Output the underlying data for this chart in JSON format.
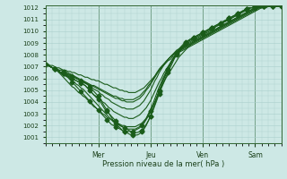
{
  "title": "",
  "xlabel": "Pression niveau de la mer( hPa )",
  "ylabel": "",
  "bg_color": "#cde8e5",
  "plot_bg_color": "#cde8e5",
  "line_color": "#1a5c1a",
  "grid_color": "#aacfcc",
  "axis_color": "#336633",
  "text_color": "#1a401a",
  "ylim": [
    1001,
    1012
  ],
  "yticks": [
    1001,
    1002,
    1003,
    1004,
    1005,
    1006,
    1007,
    1008,
    1009,
    1010,
    1011,
    1012
  ],
  "day_labels": [
    "Mer",
    "Jeu",
    "Ven",
    "Sam"
  ],
  "day_positions": [
    24,
    48,
    72,
    96
  ],
  "xlim": [
    0,
    108
  ],
  "num_x_points": 109,
  "ensemble_lines": [
    [
      1007.2,
      1007.1,
      1007.0,
      1006.9,
      1006.8,
      1006.8,
      1006.7,
      1006.7,
      1006.6,
      1006.5,
      1006.4,
      1006.3,
      1006.2,
      1006.1,
      1006.0,
      1005.9,
      1005.8,
      1005.7,
      1005.6,
      1005.5,
      1005.3,
      1005.1,
      1004.9,
      1004.7,
      1004.5,
      1004.2,
      1003.9,
      1003.6,
      1003.3,
      1003.0,
      1002.7,
      1002.4,
      1002.2,
      1002.0,
      1001.8,
      1001.6,
      1001.5,
      1001.4,
      1001.3,
      1001.2,
      1001.2,
      1001.2,
      1001.2,
      1001.3,
      1001.5,
      1001.7,
      1002.0,
      1002.4,
      1002.8,
      1003.3,
      1003.8,
      1004.4,
      1004.9,
      1005.4,
      1005.9,
      1006.3,
      1006.7,
      1007.1,
      1007.5,
      1007.8,
      1008.1,
      1008.4,
      1008.6,
      1008.8,
      1009.0,
      1009.1,
      1009.3,
      1009.4,
      1009.5,
      1009.6,
      1009.7,
      1009.8,
      1009.9,
      1010.0,
      1010.1,
      1010.2,
      1010.3,
      1010.4,
      1010.5,
      1010.6,
      1010.7,
      1010.8,
      1010.9,
      1011.0,
      1011.1,
      1011.2,
      1011.3,
      1011.4,
      1011.5,
      1011.6,
      1011.7,
      1011.8,
      1011.9,
      1012.0,
      1012.0,
      1012.0,
      1012.1,
      1012.1,
      1012.1,
      1012.1,
      1012.1,
      1012.1,
      1012.1,
      1012.1,
      1012.1,
      1012.1,
      1012.1,
      1012.1,
      1012.1
    ],
    [
      1007.2,
      1007.1,
      1007.0,
      1006.9,
      1006.8,
      1006.7,
      1006.6,
      1006.5,
      1006.4,
      1006.3,
      1006.2,
      1006.1,
      1006.0,
      1005.9,
      1005.8,
      1005.7,
      1005.6,
      1005.5,
      1005.4,
      1005.2,
      1005.0,
      1004.8,
      1004.6,
      1004.4,
      1004.2,
      1004.0,
      1003.7,
      1003.4,
      1003.2,
      1003.0,
      1002.8,
      1002.6,
      1002.4,
      1002.2,
      1002.0,
      1001.9,
      1001.8,
      1001.7,
      1001.6,
      1001.5,
      1001.4,
      1001.4,
      1001.4,
      1001.5,
      1001.6,
      1001.8,
      1002.1,
      1002.4,
      1002.8,
      1003.2,
      1003.7,
      1004.2,
      1004.7,
      1005.2,
      1005.7,
      1006.1,
      1006.5,
      1006.9,
      1007.3,
      1007.7,
      1008.0,
      1008.3,
      1008.5,
      1008.7,
      1008.9,
      1009.1,
      1009.2,
      1009.3,
      1009.4,
      1009.5,
      1009.6,
      1009.7,
      1009.8,
      1009.9,
      1010.0,
      1010.1,
      1010.2,
      1010.3,
      1010.4,
      1010.5,
      1010.6,
      1010.7,
      1010.8,
      1010.9,
      1011.0,
      1011.1,
      1011.2,
      1011.3,
      1011.4,
      1011.5,
      1011.6,
      1011.7,
      1011.8,
      1011.9,
      1012.0,
      1012.0,
      1012.0,
      1012.1,
      1012.1,
      1012.1,
      1012.1,
      1012.1,
      1012.1,
      1012.1,
      1012.1,
      1012.1,
      1012.1,
      1012.1,
      1012.1
    ],
    [
      1007.2,
      1007.1,
      1007.0,
      1006.9,
      1006.8,
      1006.7,
      1006.6,
      1006.5,
      1006.4,
      1006.3,
      1006.1,
      1005.9,
      1005.7,
      1005.5,
      1005.3,
      1005.1,
      1004.9,
      1004.7,
      1004.5,
      1004.3,
      1004.1,
      1003.9,
      1003.7,
      1003.5,
      1003.3,
      1003.1,
      1002.9,
      1002.7,
      1002.5,
      1002.3,
      1002.1,
      1002.0,
      1001.9,
      1001.8,
      1001.7,
      1001.6,
      1001.5,
      1001.5,
      1001.5,
      1001.5,
      1001.5,
      1001.6,
      1001.7,
      1001.8,
      1002.0,
      1002.2,
      1002.5,
      1002.8,
      1003.2,
      1003.6,
      1004.0,
      1004.5,
      1005.0,
      1005.5,
      1006.0,
      1006.4,
      1006.8,
      1007.2,
      1007.6,
      1007.9,
      1008.2,
      1008.5,
      1008.7,
      1008.9,
      1009.1,
      1009.2,
      1009.3,
      1009.4,
      1009.5,
      1009.6,
      1009.7,
      1009.8,
      1009.9,
      1010.0,
      1010.1,
      1010.2,
      1010.3,
      1010.4,
      1010.5,
      1010.6,
      1010.7,
      1010.8,
      1010.9,
      1011.0,
      1011.1,
      1011.2,
      1011.3,
      1011.4,
      1011.5,
      1011.6,
      1011.7,
      1011.8,
      1011.9,
      1012.0,
      1012.0,
      1012.0,
      1012.1,
      1012.1,
      1012.1,
      1012.1,
      1012.1,
      1012.1,
      1012.1,
      1012.1,
      1012.1,
      1012.1,
      1012.1,
      1012.1,
      1012.1
    ],
    [
      1007.2,
      1007.1,
      1007.0,
      1006.9,
      1006.8,
      1006.7,
      1006.5,
      1006.4,
      1006.3,
      1006.2,
      1006.1,
      1006.0,
      1005.8,
      1005.7,
      1005.5,
      1005.4,
      1005.2,
      1005.1,
      1004.9,
      1004.7,
      1004.5,
      1004.3,
      1004.1,
      1003.9,
      1003.7,
      1003.5,
      1003.3,
      1003.1,
      1002.9,
      1002.7,
      1002.5,
      1002.3,
      1002.2,
      1002.1,
      1002.0,
      1001.9,
      1001.8,
      1001.7,
      1001.7,
      1001.7,
      1001.7,
      1001.7,
      1001.8,
      1001.9,
      1002.1,
      1002.3,
      1002.6,
      1003.0,
      1003.4,
      1003.8,
      1004.3,
      1004.8,
      1005.3,
      1005.7,
      1006.1,
      1006.5,
      1006.9,
      1007.2,
      1007.5,
      1007.8,
      1008.1,
      1008.3,
      1008.5,
      1008.7,
      1008.9,
      1009.0,
      1009.1,
      1009.2,
      1009.3,
      1009.4,
      1009.5,
      1009.6,
      1009.7,
      1009.8,
      1009.9,
      1010.0,
      1010.1,
      1010.2,
      1010.4,
      1010.5,
      1010.6,
      1010.7,
      1010.8,
      1010.9,
      1011.0,
      1011.1,
      1011.2,
      1011.3,
      1011.4,
      1011.5,
      1011.6,
      1011.7,
      1011.8,
      1011.9,
      1012.0,
      1012.0,
      1012.0,
      1012.1,
      1012.1,
      1012.1,
      1012.1,
      1012.1,
      1012.1,
      1012.1,
      1012.1,
      1012.1,
      1012.1,
      1012.1,
      1012.1
    ],
    [
      1007.2,
      1007.1,
      1007.0,
      1006.9,
      1006.8,
      1006.7,
      1006.5,
      1006.3,
      1006.1,
      1005.9,
      1005.7,
      1005.5,
      1005.3,
      1005.2,
      1005.0,
      1004.8,
      1004.7,
      1004.5,
      1004.4,
      1004.2,
      1004.0,
      1003.8,
      1003.6,
      1003.5,
      1003.3,
      1003.2,
      1003.0,
      1002.9,
      1002.7,
      1002.6,
      1002.5,
      1002.4,
      1002.3,
      1002.2,
      1002.1,
      1002.0,
      1002.0,
      1001.9,
      1001.9,
      1001.9,
      1001.9,
      1001.9,
      1002.0,
      1002.1,
      1002.2,
      1002.4,
      1002.6,
      1002.9,
      1003.2,
      1003.6,
      1004.0,
      1004.4,
      1004.8,
      1005.2,
      1005.6,
      1006.0,
      1006.3,
      1006.6,
      1006.9,
      1007.2,
      1007.5,
      1007.8,
      1008.0,
      1008.2,
      1008.4,
      1008.6,
      1008.8,
      1009.0,
      1009.1,
      1009.2,
      1009.3,
      1009.4,
      1009.5,
      1009.6,
      1009.7,
      1009.8,
      1009.9,
      1010.0,
      1010.1,
      1010.3,
      1010.4,
      1010.5,
      1010.6,
      1010.7,
      1010.8,
      1010.9,
      1011.0,
      1011.1,
      1011.2,
      1011.3,
      1011.4,
      1011.5,
      1011.6,
      1011.7,
      1011.8,
      1011.9,
      1012.0,
      1012.0,
      1012.1,
      1012.1,
      1012.1,
      1012.1,
      1012.1,
      1012.1,
      1012.1,
      1012.1,
      1012.1,
      1012.1,
      1012.1
    ],
    [
      1007.2,
      1007.1,
      1007.0,
      1006.9,
      1006.8,
      1006.7,
      1006.6,
      1006.5,
      1006.4,
      1006.3,
      1006.2,
      1006.1,
      1006.0,
      1005.9,
      1005.8,
      1005.7,
      1005.6,
      1005.5,
      1005.4,
      1005.2,
      1005.0,
      1004.8,
      1004.6,
      1004.5,
      1004.3,
      1004.2,
      1004.0,
      1003.9,
      1003.7,
      1003.5,
      1003.4,
      1003.2,
      1003.1,
      1003.0,
      1002.9,
      1002.8,
      1002.7,
      1002.7,
      1002.6,
      1002.6,
      1002.6,
      1002.7,
      1002.8,
      1002.9,
      1003.1,
      1003.3,
      1003.5,
      1003.8,
      1004.1,
      1004.5,
      1004.9,
      1005.3,
      1005.7,
      1006.0,
      1006.4,
      1006.7,
      1007.0,
      1007.3,
      1007.6,
      1007.8,
      1008.0,
      1008.2,
      1008.4,
      1008.6,
      1008.7,
      1008.8,
      1008.9,
      1009.0,
      1009.1,
      1009.2,
      1009.3,
      1009.4,
      1009.5,
      1009.6,
      1009.7,
      1009.8,
      1009.9,
      1010.0,
      1010.1,
      1010.2,
      1010.3,
      1010.4,
      1010.5,
      1010.6,
      1010.7,
      1010.8,
      1010.9,
      1011.0,
      1011.1,
      1011.2,
      1011.3,
      1011.4,
      1011.5,
      1011.6,
      1011.7,
      1011.8,
      1011.9,
      1012.0,
      1012.0,
      1012.0,
      1012.1,
      1012.1,
      1012.1,
      1012.1,
      1012.1,
      1012.1,
      1012.1,
      1012.1,
      1012.1
    ],
    [
      1007.2,
      1007.1,
      1007.0,
      1006.9,
      1006.8,
      1006.7,
      1006.6,
      1006.5,
      1006.5,
      1006.4,
      1006.3,
      1006.3,
      1006.2,
      1006.1,
      1006.0,
      1005.9,
      1005.8,
      1005.7,
      1005.6,
      1005.5,
      1005.4,
      1005.2,
      1005.1,
      1005.0,
      1004.9,
      1004.7,
      1004.6,
      1004.4,
      1004.3,
      1004.2,
      1004.0,
      1003.9,
      1003.8,
      1003.7,
      1003.6,
      1003.5,
      1003.5,
      1003.4,
      1003.4,
      1003.4,
      1003.4,
      1003.5,
      1003.6,
      1003.7,
      1003.9,
      1004.1,
      1004.4,
      1004.7,
      1005.0,
      1005.4,
      1005.8,
      1006.1,
      1006.5,
      1006.8,
      1007.1,
      1007.4,
      1007.6,
      1007.8,
      1008.0,
      1008.2,
      1008.4,
      1008.5,
      1008.6,
      1008.7,
      1008.8,
      1008.9,
      1009.0,
      1009.1,
      1009.2,
      1009.3,
      1009.4,
      1009.5,
      1009.6,
      1009.7,
      1009.8,
      1009.9,
      1010.0,
      1010.1,
      1010.2,
      1010.3,
      1010.4,
      1010.5,
      1010.6,
      1010.7,
      1010.8,
      1010.9,
      1011.0,
      1011.1,
      1011.2,
      1011.3,
      1011.4,
      1011.5,
      1011.6,
      1011.7,
      1011.8,
      1011.9,
      1012.0,
      1012.0,
      1012.0,
      1012.1,
      1012.1,
      1012.1,
      1012.1,
      1012.1,
      1012.1,
      1012.1,
      1012.1,
      1012.1,
      1012.1
    ],
    [
      1007.2,
      1007.1,
      1007.0,
      1006.9,
      1006.8,
      1006.8,
      1006.7,
      1006.7,
      1006.6,
      1006.5,
      1006.5,
      1006.4,
      1006.3,
      1006.2,
      1006.1,
      1006.0,
      1005.9,
      1005.8,
      1005.7,
      1005.6,
      1005.5,
      1005.4,
      1005.3,
      1005.2,
      1005.1,
      1005.0,
      1004.9,
      1004.8,
      1004.7,
      1004.6,
      1004.5,
      1004.4,
      1004.3,
      1004.3,
      1004.2,
      1004.1,
      1004.1,
      1004.0,
      1004.0,
      1004.0,
      1004.0,
      1004.1,
      1004.2,
      1004.3,
      1004.5,
      1004.7,
      1005.0,
      1005.2,
      1005.5,
      1005.8,
      1006.1,
      1006.4,
      1006.7,
      1007.0,
      1007.2,
      1007.4,
      1007.6,
      1007.8,
      1008.0,
      1008.1,
      1008.3,
      1008.4,
      1008.5,
      1008.6,
      1008.7,
      1008.8,
      1008.9,
      1009.0,
      1009.1,
      1009.2,
      1009.3,
      1009.4,
      1009.5,
      1009.6,
      1009.7,
      1009.8,
      1009.9,
      1010.0,
      1010.1,
      1010.2,
      1010.3,
      1010.4,
      1010.5,
      1010.6,
      1010.7,
      1010.8,
      1010.9,
      1011.0,
      1011.1,
      1011.2,
      1011.3,
      1011.4,
      1011.5,
      1011.6,
      1011.7,
      1011.8,
      1011.9,
      1012.0,
      1012.0,
      1012.0,
      1012.1,
      1012.1,
      1012.1,
      1012.1,
      1012.1,
      1012.1,
      1012.1,
      1012.1,
      1012.1
    ],
    [
      1007.2,
      1007.1,
      1007.0,
      1006.9,
      1006.8,
      1006.7,
      1006.6,
      1006.5,
      1006.4,
      1006.3,
      1006.3,
      1006.2,
      1006.1,
      1006.1,
      1006.0,
      1005.9,
      1005.8,
      1005.8,
      1005.7,
      1005.6,
      1005.5,
      1005.4,
      1005.4,
      1005.3,
      1005.2,
      1005.1,
      1005.0,
      1004.9,
      1004.8,
      1004.7,
      1004.6,
      1004.5,
      1004.5,
      1004.4,
      1004.3,
      1004.3,
      1004.2,
      1004.2,
      1004.2,
      1004.2,
      1004.2,
      1004.3,
      1004.4,
      1004.5,
      1004.7,
      1004.9,
      1005.1,
      1005.4,
      1005.6,
      1005.9,
      1006.2,
      1006.5,
      1006.8,
      1007.0,
      1007.2,
      1007.4,
      1007.6,
      1007.8,
      1007.9,
      1008.1,
      1008.2,
      1008.3,
      1008.4,
      1008.5,
      1008.6,
      1008.7,
      1008.8,
      1008.9,
      1009.0,
      1009.1,
      1009.2,
      1009.3,
      1009.4,
      1009.5,
      1009.6,
      1009.7,
      1009.8,
      1009.9,
      1010.0,
      1010.1,
      1010.2,
      1010.3,
      1010.4,
      1010.5,
      1010.6,
      1010.7,
      1010.8,
      1010.9,
      1011.0,
      1011.1,
      1011.2,
      1011.3,
      1011.4,
      1011.5,
      1011.6,
      1011.7,
      1011.8,
      1011.9,
      1012.0,
      1012.0,
      1012.0,
      1012.1,
      1012.1,
      1012.1,
      1012.1,
      1012.1,
      1012.1,
      1012.1,
      1012.1
    ],
    [
      1007.2,
      1007.2,
      1007.1,
      1007.1,
      1007.0,
      1006.9,
      1006.9,
      1006.8,
      1006.7,
      1006.7,
      1006.6,
      1006.6,
      1006.5,
      1006.5,
      1006.4,
      1006.3,
      1006.3,
      1006.2,
      1006.1,
      1006.1,
      1006.0,
      1005.9,
      1005.9,
      1005.8,
      1005.8,
      1005.7,
      1005.6,
      1005.5,
      1005.5,
      1005.4,
      1005.3,
      1005.2,
      1005.2,
      1005.1,
      1005.0,
      1005.0,
      1004.9,
      1004.9,
      1004.8,
      1004.8,
      1004.8,
      1004.8,
      1004.9,
      1005.0,
      1005.1,
      1005.2,
      1005.4,
      1005.6,
      1005.8,
      1006.0,
      1006.2,
      1006.5,
      1006.7,
      1006.9,
      1007.1,
      1007.3,
      1007.5,
      1007.6,
      1007.8,
      1007.9,
      1008.0,
      1008.2,
      1008.3,
      1008.4,
      1008.5,
      1008.6,
      1008.7,
      1008.8,
      1008.9,
      1009.0,
      1009.1,
      1009.2,
      1009.3,
      1009.4,
      1009.5,
      1009.6,
      1009.7,
      1009.8,
      1009.9,
      1010.0,
      1010.1,
      1010.2,
      1010.3,
      1010.4,
      1010.5,
      1010.6,
      1010.7,
      1010.8,
      1010.9,
      1011.0,
      1011.1,
      1011.2,
      1011.3,
      1011.4,
      1011.5,
      1011.6,
      1011.7,
      1011.8,
      1011.9,
      1012.0,
      1012.0,
      1012.0,
      1012.1,
      1012.1,
      1012.1,
      1012.1,
      1012.1,
      1012.1,
      1012.1
    ]
  ],
  "marker_indices": [
    0,
    4,
    8,
    12,
    16,
    20,
    24,
    28,
    32,
    36,
    40,
    44,
    48,
    52,
    56,
    60,
    64,
    68,
    72,
    76,
    80,
    84,
    88,
    92,
    96,
    100,
    104,
    108
  ],
  "marker_lines": [
    0,
    1,
    2
  ],
  "marker_color": "#1a5c1a",
  "marker_size": 2.5
}
